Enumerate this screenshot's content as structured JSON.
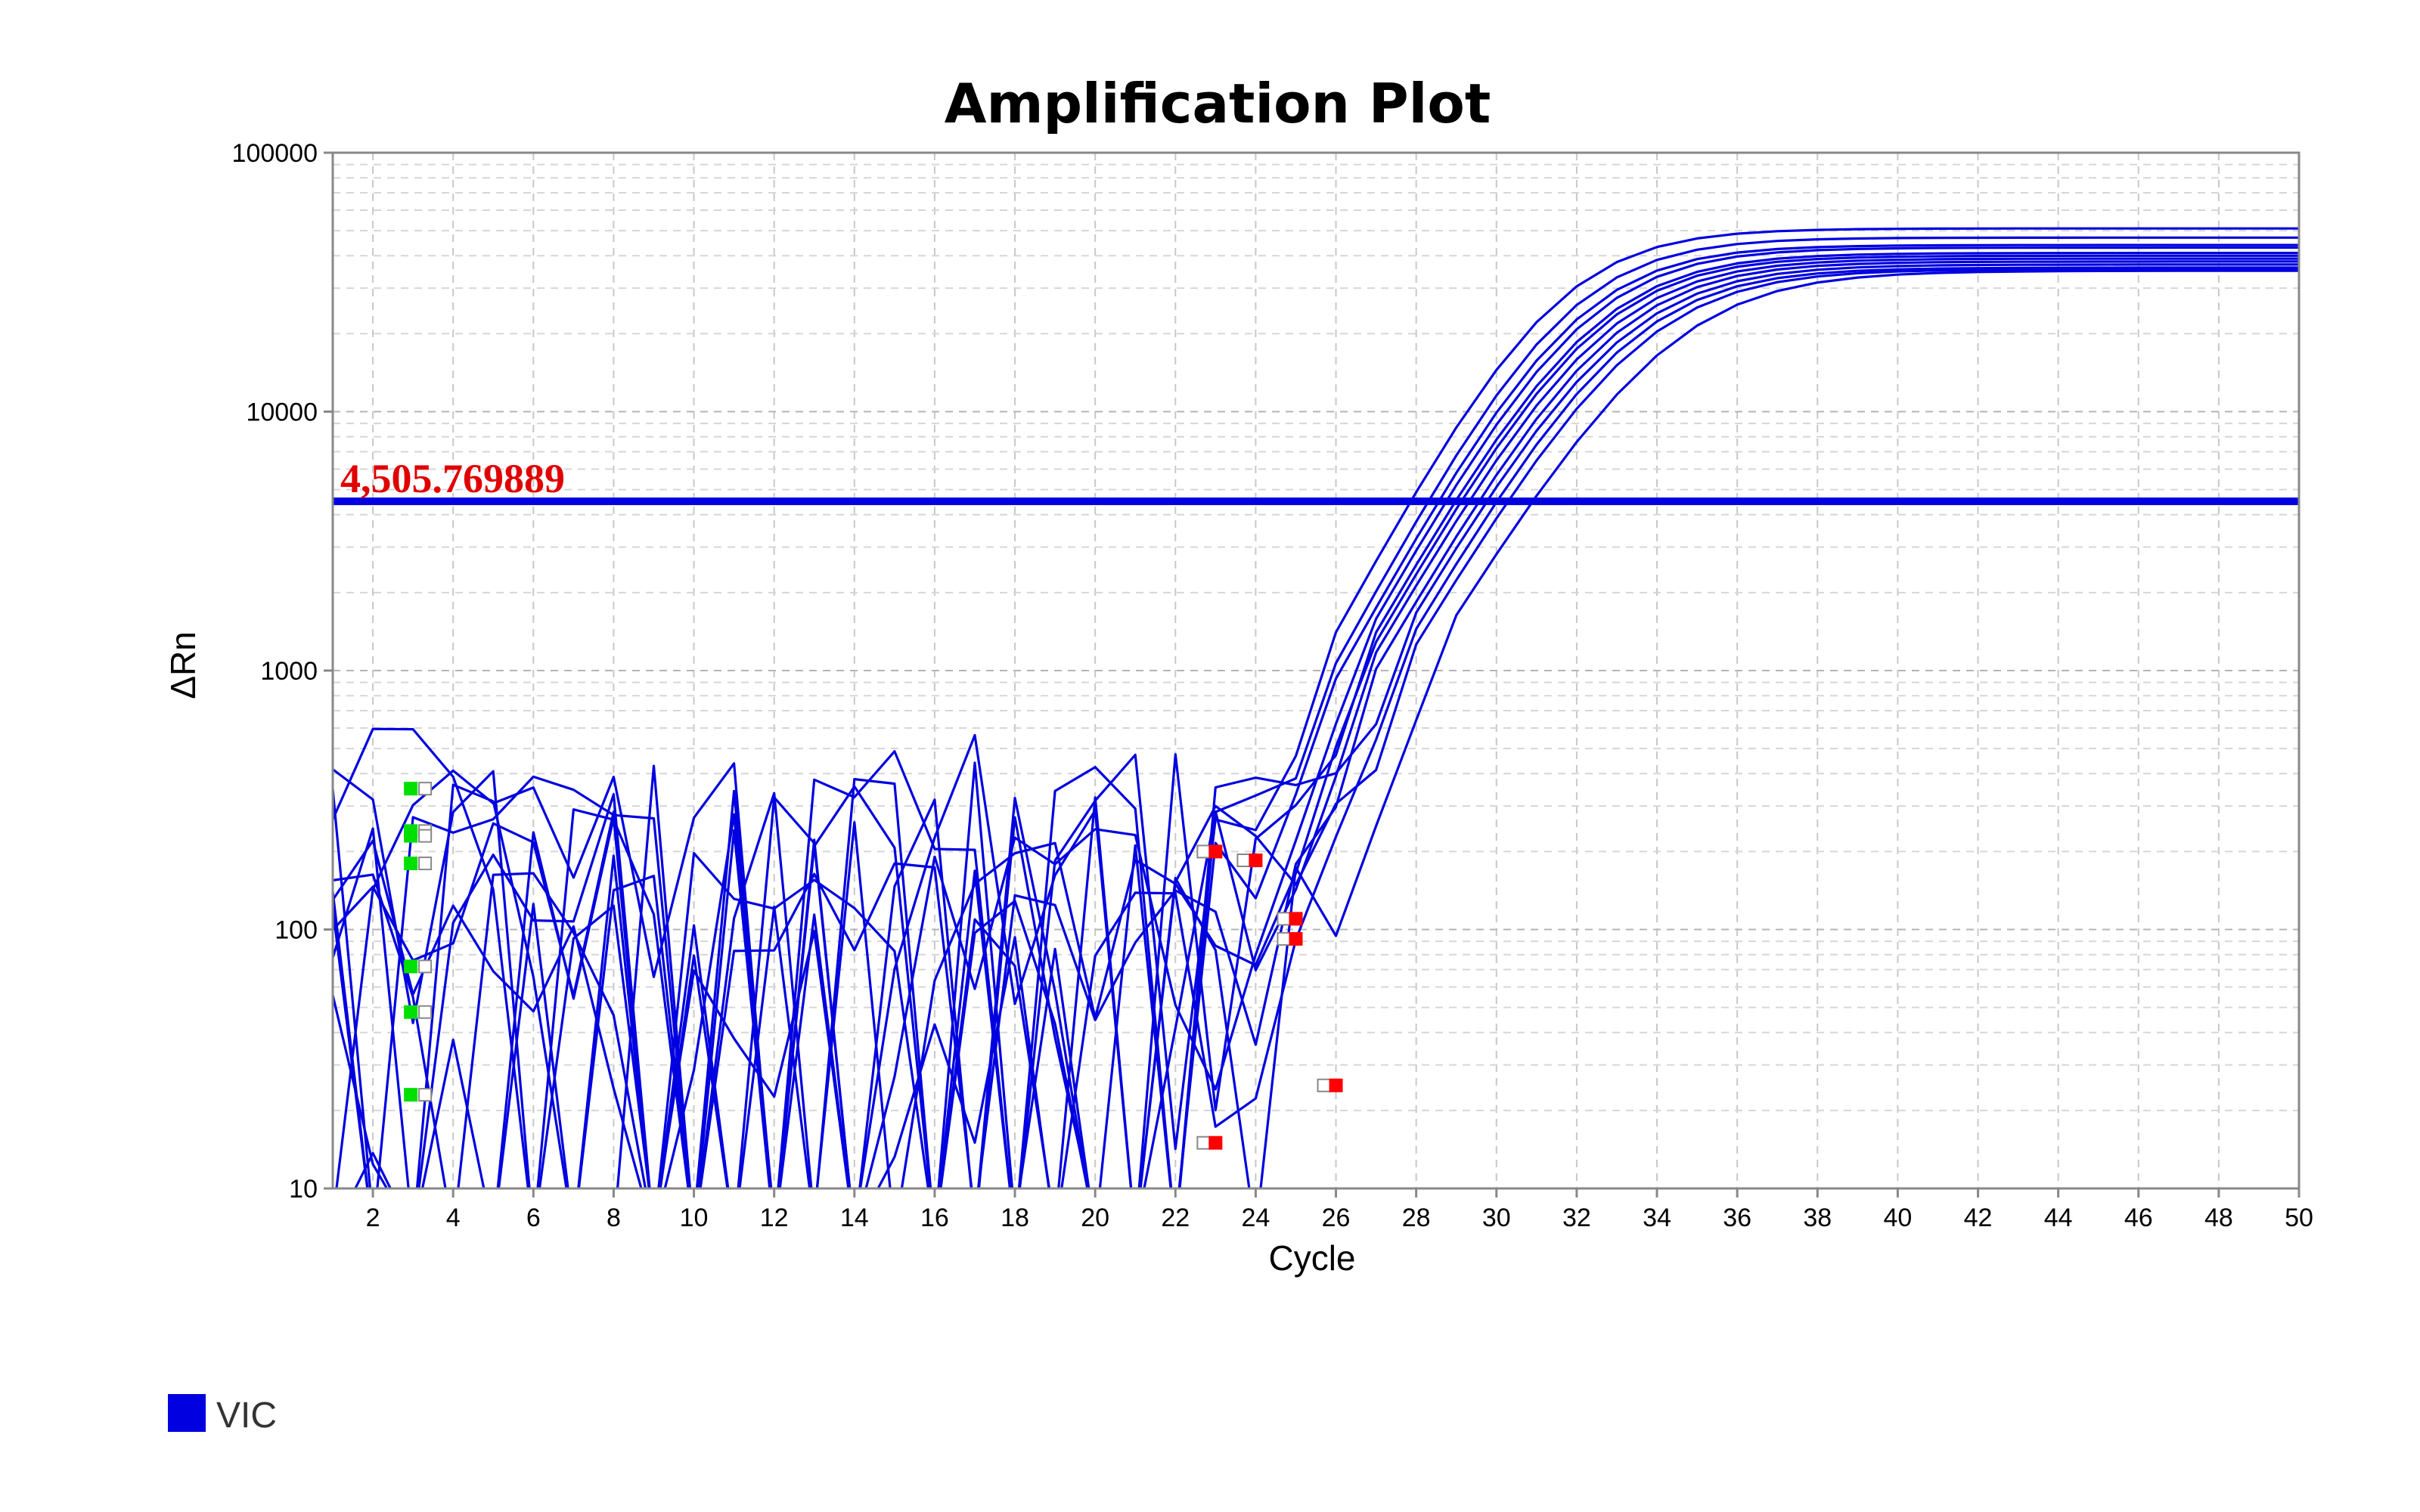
{
  "chart_data": {
    "type": "line",
    "title": "Amplification Plot",
    "xlabel": "Cycle",
    "ylabel": "ΔRn",
    "xlim": [
      1,
      50
    ],
    "ylim": [
      10,
      100000
    ],
    "yscale": "log",
    "grid": true,
    "x_ticks": [
      2,
      4,
      6,
      8,
      10,
      12,
      14,
      16,
      18,
      20,
      22,
      24,
      26,
      28,
      30,
      32,
      34,
      36,
      38,
      40,
      42,
      44,
      46,
      48,
      50
    ],
    "y_ticks": [
      10,
      100,
      1000,
      10000,
      100000
    ],
    "y_tick_labels": [
      "10",
      "100",
      "1000",
      "10000",
      "100000"
    ],
    "threshold": {
      "value": 4505.769889,
      "label": "4,505.769889",
      "color": "#0000e0"
    },
    "series_color": "#0000e0",
    "series": [
      {
        "baseline": 260,
        "plateau": 51000,
        "midpoint": 31.4,
        "slope": 0.66
      },
      {
        "baseline": 180,
        "plateau": 47000,
        "midpoint": 31.7,
        "slope": 0.66
      },
      {
        "baseline": 220,
        "plateau": 44000,
        "midpoint": 31.9,
        "slope": 0.65
      },
      {
        "baseline": 150,
        "plateau": 43000,
        "midpoint": 32.1,
        "slope": 0.64
      },
      {
        "baseline": 300,
        "plateau": 41000,
        "midpoint": 32.3,
        "slope": 0.63
      },
      {
        "baseline": 120,
        "plateau": 40000,
        "midpoint": 32.4,
        "slope": 0.63
      },
      {
        "baseline": 200,
        "plateau": 39000,
        "midpoint": 32.6,
        "slope": 0.62
      },
      {
        "baseline": 90,
        "plateau": 38000,
        "midpoint": 32.8,
        "slope": 0.62
      },
      {
        "baseline": 250,
        "plateau": 37000,
        "midpoint": 33.0,
        "slope": 0.61
      },
      {
        "baseline": 70,
        "plateau": 36000,
        "midpoint": 33.2,
        "slope": 0.61
      },
      {
        "baseline": 160,
        "plateau": 35500,
        "midpoint": 33.5,
        "slope": 0.6
      },
      {
        "baseline": 110,
        "plateau": 35000,
        "midpoint": 34.2,
        "slope": 0.58
      }
    ],
    "baseline_start_markers": [
      {
        "x": 3,
        "y": 350
      },
      {
        "x": 3,
        "y": 240
      },
      {
        "x": 3,
        "y": 230
      },
      {
        "x": 3,
        "y": 180
      },
      {
        "x": 3,
        "y": 72
      },
      {
        "x": 3,
        "y": 48
      },
      {
        "x": 3,
        "y": 23
      }
    ],
    "baseline_end_markers": [
      {
        "x": 23,
        "y": 200
      },
      {
        "x": 24,
        "y": 185
      },
      {
        "x": 25,
        "y": 110
      },
      {
        "x": 25,
        "y": 92
      },
      {
        "x": 26,
        "y": 25
      },
      {
        "x": 23,
        "y": 15
      }
    ],
    "marker_colors": {
      "start": "#00e000",
      "end": "#ff0000",
      "outline": "#888888"
    },
    "legend": {
      "label": "VIC",
      "color": "#0000e0",
      "position": "bottom-left"
    }
  }
}
